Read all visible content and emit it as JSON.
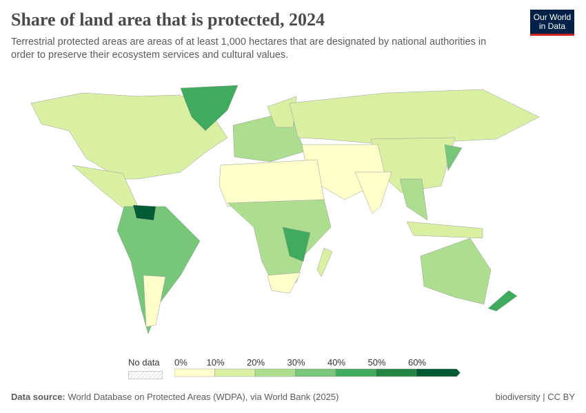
{
  "header": {
    "title": "Share of land area that is protected, 2024",
    "subtitle": "Terrestrial protected areas are areas of at least 1,000 hectares that are designated by national authorities in order to preserve their ecosystem services and cultural values.",
    "logo": "Our World in Data"
  },
  "chart_data": {
    "type": "choropleth-map",
    "title": "Share of land area that is protected, 2024",
    "legend": {
      "no_data_label": "No data",
      "ticks": [
        "0%",
        "10%",
        "20%",
        "30%",
        "40%",
        "50%",
        "60%"
      ],
      "bins": [
        [
          0,
          10
        ],
        [
          10,
          20
        ],
        [
          20,
          30
        ],
        [
          30,
          40
        ],
        [
          40,
          50
        ],
        [
          50,
          60
        ],
        [
          60,
          null
        ]
      ],
      "colors": [
        "#ffffcc",
        "#d9f0a3",
        "#addd8e",
        "#78c679",
        "#41ab5d",
        "#238443",
        "#005a32"
      ],
      "placement": "bottom-center"
    }
  },
  "footer": {
    "source_label": "Data source:",
    "source": "World Database on Protected Areas (WDPA), via World Bank (2025)",
    "right": "biodiversity | CC BY"
  }
}
